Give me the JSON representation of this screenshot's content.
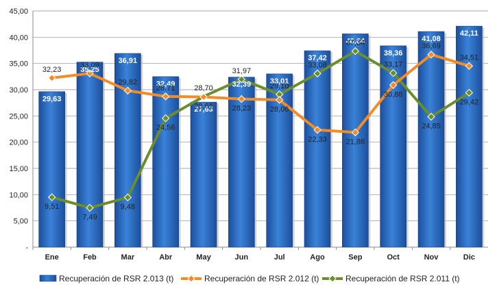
{
  "chart_data": {
    "type": "bar",
    "categories": [
      "Ene",
      "Feb",
      "Mar",
      "Abr",
      "May",
      "Jun",
      "Jul",
      "Ago",
      "Sep",
      "Oct",
      "Nov",
      "Dic"
    ],
    "ylim": [
      0,
      45
    ],
    "yticks": [
      "-",
      "5,00",
      "10,00",
      "15,00",
      "20,00",
      "25,00",
      "30,00",
      "35,00",
      "40,00",
      "45,00"
    ],
    "grid": true,
    "legend_position": "bottom",
    "series": [
      {
        "name": "Recuperación de RSR 2.013 (t)",
        "kind": "bar",
        "color": "#2E6FC4",
        "values": [
          29.63,
          35.25,
          36.91,
          32.49,
          27.63,
          32.39,
          33.01,
          37.42,
          40.64,
          38.36,
          41.08,
          42.11
        ],
        "labels": [
          "29,63",
          "35,25",
          "36,91",
          "32,49",
          "27,63",
          "32,39",
          "33,01",
          "37,42",
          "40,64",
          "38,36",
          "41,08",
          "42,11"
        ]
      },
      {
        "name": "Recuperación de RSR 2.012 (t)",
        "kind": "line",
        "color": "#F28C28",
        "values": [
          32.23,
          33.09,
          29.82,
          28.71,
          28.61,
          28.23,
          28.06,
          22.33,
          21.86,
          30.88,
          36.69,
          34.51
        ],
        "labels": [
          "32,23",
          "33,09",
          "29,82",
          "28,71",
          "28,61",
          "28,23",
          "28,06",
          "22,33",
          "21,86",
          "30,88",
          "36,69",
          "34,51"
        ]
      },
      {
        "name": "Recuperación de RSR 2.011 (t)",
        "kind": "line",
        "color": "#6A8E2E",
        "values": [
          9.51,
          7.49,
          9.48,
          24.56,
          28.7,
          31.97,
          29.1,
          33.08,
          37.34,
          33.17,
          24.85,
          29.42
        ],
        "labels": [
          "9,51",
          "7,49",
          "9,48",
          "24,56",
          "28,70",
          "31,97",
          "29,10",
          "33,08",
          "37,34",
          "33,17",
          "24,85",
          "29,42"
        ]
      }
    ]
  }
}
